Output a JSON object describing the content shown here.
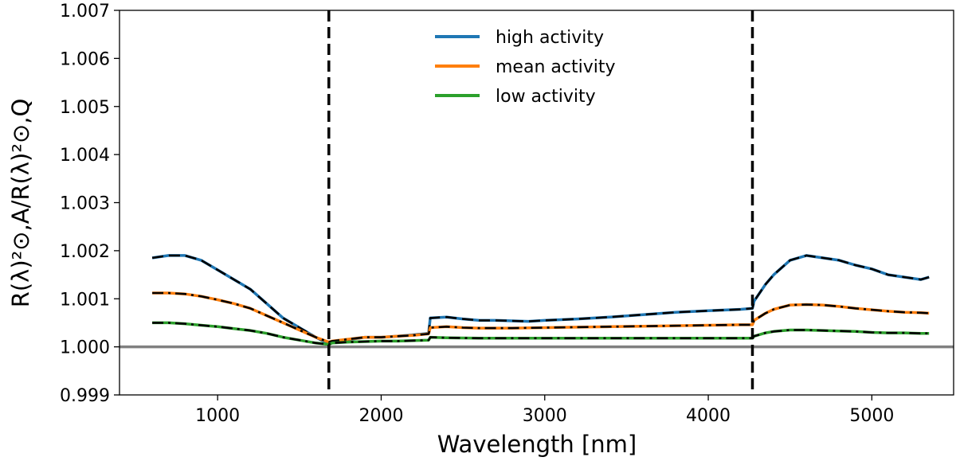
{
  "chart_data": {
    "type": "line",
    "title": "",
    "xlabel": "Wavelength [nm]",
    "ylabel": "R(λ)²⊙,A/R(λ)²⊙,Q",
    "xlim": [
      400,
      5500
    ],
    "ylim": [
      0.999,
      1.007
    ],
    "xticks": [
      1000,
      2000,
      3000,
      4000,
      5000
    ],
    "xtick_labels": [
      "1000",
      "2000",
      "3000",
      "4000",
      "5000"
    ],
    "yticks": [
      0.999,
      1.0,
      1.001,
      1.002,
      1.003,
      1.004,
      1.005,
      1.006,
      1.007
    ],
    "ytick_labels": [
      "0.999",
      "1.000",
      "1.001",
      "1.002",
      "1.003",
      "1.004",
      "1.005",
      "1.006",
      "1.007"
    ],
    "reference_line": {
      "y": 1.0,
      "color": "#808080"
    },
    "vertical_lines": [
      {
        "x": 1680,
        "style": "dashed"
      },
      {
        "x": 4270,
        "style": "dashed"
      }
    ],
    "legend": {
      "placement": "top-center"
    },
    "series": [
      {
        "name": "high activity",
        "color": "#1f77b4",
        "x": [
          600,
          700,
          800,
          900,
          1000,
          1100,
          1200,
          1300,
          1400,
          1500,
          1600,
          1680,
          1700,
          1800,
          1900,
          2000,
          2100,
          2200,
          2290,
          2300,
          2400,
          2500,
          2600,
          2700,
          2800,
          2900,
          3000,
          3200,
          3400,
          3600,
          3800,
          4000,
          4200,
          4270,
          4280,
          4350,
          4400,
          4500,
          4600,
          4700,
          4800,
          4900,
          5000,
          5100,
          5200,
          5300,
          5350
        ],
        "values": [
          1.00185,
          1.0019,
          1.0019,
          1.0018,
          1.0016,
          1.0014,
          1.0012,
          1.0009,
          1.0006,
          1.0004,
          1.0002,
          1.00006,
          1.0001,
          1.00015,
          1.0002,
          1.0002,
          1.00022,
          1.00025,
          1.00028,
          1.0006,
          1.00062,
          1.00058,
          1.00055,
          1.00055,
          1.00054,
          1.00053,
          1.00055,
          1.00058,
          1.00062,
          1.00067,
          1.00072,
          1.00075,
          1.00078,
          1.0008,
          1.00095,
          1.0013,
          1.0015,
          1.0018,
          1.0019,
          1.00185,
          1.0018,
          1.0017,
          1.00162,
          1.0015,
          1.00145,
          1.0014,
          1.00145
        ]
      },
      {
        "name": "mean activity",
        "color": "#ff7f0e",
        "x": [
          600,
          700,
          800,
          900,
          1000,
          1100,
          1200,
          1300,
          1400,
          1500,
          1600,
          1680,
          1700,
          1800,
          1900,
          2000,
          2100,
          2200,
          2290,
          2300,
          2400,
          2500,
          2600,
          2800,
          3000,
          3200,
          3400,
          3600,
          3800,
          4000,
          4200,
          4270,
          4280,
          4350,
          4400,
          4500,
          4600,
          4700,
          4800,
          4900,
          5000,
          5100,
          5200,
          5300,
          5350
        ],
        "values": [
          1.00112,
          1.00112,
          1.0011,
          1.00105,
          1.00098,
          1.0009,
          1.0008,
          1.00065,
          1.0005,
          1.00035,
          1.0002,
          1.0001,
          1.00012,
          1.00016,
          1.0002,
          1.0002,
          1.00022,
          1.00024,
          1.00027,
          1.0004,
          1.00042,
          1.0004,
          1.00039,
          1.00039,
          1.0004,
          1.00041,
          1.00042,
          1.00043,
          1.00044,
          1.00045,
          1.00046,
          1.00046,
          1.00055,
          1.0007,
          1.00078,
          1.00087,
          1.00088,
          1.00087,
          1.00084,
          1.0008,
          1.00077,
          1.00074,
          1.00072,
          1.00071,
          1.0007
        ]
      },
      {
        "name": "low activity",
        "color": "#2ca02c",
        "x": [
          600,
          700,
          800,
          900,
          1000,
          1100,
          1200,
          1300,
          1400,
          1500,
          1600,
          1680,
          1700,
          1800,
          1900,
          2000,
          2100,
          2200,
          2290,
          2300,
          2400,
          2600,
          2800,
          3000,
          3200,
          3400,
          3600,
          3800,
          4000,
          4200,
          4270,
          4280,
          4350,
          4400,
          4500,
          4600,
          4700,
          4800,
          4900,
          5000,
          5100,
          5200,
          5300,
          5350
        ],
        "values": [
          1.0005,
          1.0005,
          1.00048,
          1.00045,
          1.00042,
          1.00038,
          1.00034,
          1.00028,
          1.0002,
          1.00014,
          1.00008,
          1.00005,
          1.00008,
          1.0001,
          1.00011,
          1.00012,
          1.00012,
          1.00013,
          1.00014,
          1.0002,
          1.00019,
          1.00018,
          1.00018,
          1.00018,
          1.00018,
          1.00018,
          1.00018,
          1.00018,
          1.00018,
          1.00018,
          1.00018,
          1.00022,
          1.00029,
          1.00032,
          1.00035,
          1.00035,
          1.00034,
          1.00033,
          1.00032,
          1.0003,
          1.00029,
          1.00029,
          1.00028,
          1.00028
        ]
      }
    ]
  }
}
